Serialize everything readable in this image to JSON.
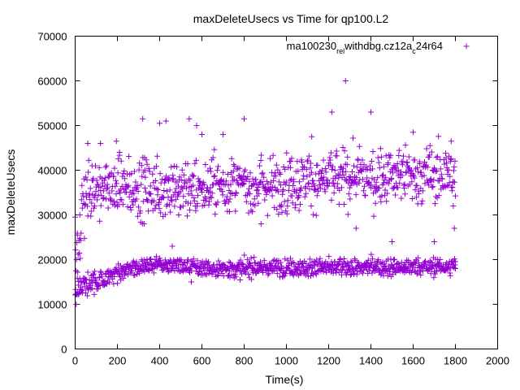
{
  "chart_data": {
    "type": "scatter",
    "title": "maxDeleteUsecs vs Time for qp100.L2",
    "xlabel": "Time(s)",
    "ylabel": "maxDeleteUsecs",
    "xlim": [
      0,
      2000
    ],
    "ylim": [
      0,
      70000
    ],
    "x_ticks": [
      0,
      200,
      400,
      600,
      800,
      1000,
      1200,
      1400,
      1600,
      1800,
      2000
    ],
    "y_ticks": [
      0,
      10000,
      20000,
      30000,
      40000,
      50000,
      60000,
      70000
    ],
    "grid": false,
    "legend_position": "top-right",
    "marker": "+",
    "series": [
      {
        "name": "ma100230_rel_withdbg.cz12a_c24r64",
        "legend_label": {
          "parts": [
            {
              "text": "ma100230",
              "sub": false
            },
            {
              "text": "rel",
              "sub": true
            },
            {
              "text": "withdbg.cz12a",
              "sub": false
            },
            {
              "text": "c",
              "sub": true
            },
            {
              "text": "24r64",
              "sub": false
            }
          ]
        },
        "color": "#9400d3",
        "x_range": [
          0,
          1800
        ],
        "samples_per_band": 900,
        "lower_band_trend": [
          [
            0,
            13500
          ],
          [
            100,
            15000
          ],
          [
            200,
            17000
          ],
          [
            300,
            18500
          ],
          [
            400,
            19000
          ],
          [
            500,
            18500
          ],
          [
            600,
            18000
          ],
          [
            1800,
            18500
          ]
        ],
        "lower_band_spread": 1400,
        "upper_band_trend": [
          [
            0,
            28000
          ],
          [
            40,
            33000
          ],
          [
            100,
            36000
          ],
          [
            400,
            36000
          ],
          [
            800,
            36500
          ],
          [
            1200,
            38000
          ],
          [
            1800,
            39000
          ]
        ],
        "upper_band_spread": 4500,
        "points": [
          {
            "x": 5,
            "y": 10000
          },
          {
            "x": 10,
            "y": 25500
          },
          {
            "x": 22,
            "y": 30000
          },
          {
            "x": 60,
            "y": 46000
          },
          {
            "x": 80,
            "y": 41000
          },
          {
            "x": 120,
            "y": 46000
          },
          {
            "x": 195,
            "y": 46500
          },
          {
            "x": 210,
            "y": 44000
          },
          {
            "x": 320,
            "y": 51500
          },
          {
            "x": 400,
            "y": 50500
          },
          {
            "x": 430,
            "y": 51000
          },
          {
            "x": 540,
            "y": 51500
          },
          {
            "x": 550,
            "y": 15000
          },
          {
            "x": 575,
            "y": 50000
          },
          {
            "x": 600,
            "y": 48000
          },
          {
            "x": 700,
            "y": 48000
          },
          {
            "x": 800,
            "y": 51500
          },
          {
            "x": 1020,
            "y": 42000
          },
          {
            "x": 1120,
            "y": 47500
          },
          {
            "x": 1215,
            "y": 53000
          },
          {
            "x": 1280,
            "y": 60000
          },
          {
            "x": 1300,
            "y": 38000
          },
          {
            "x": 1400,
            "y": 53000
          },
          {
            "x": 1530,
            "y": 40000
          },
          {
            "x": 1580,
            "y": 43000
          },
          {
            "x": 1600,
            "y": 48500
          },
          {
            "x": 1680,
            "y": 45500
          },
          {
            "x": 1700,
            "y": 24000
          },
          {
            "x": 1760,
            "y": 36500
          },
          {
            "x": 1780,
            "y": 46500
          },
          {
            "x": 1790,
            "y": 32000
          },
          {
            "x": 1795,
            "y": 27000
          },
          {
            "x": 1800,
            "y": 18000
          },
          {
            "x": 330,
            "y": 36000
          },
          {
            "x": 460,
            "y": 23000
          },
          {
            "x": 490,
            "y": 30000
          },
          {
            "x": 640,
            "y": 34000
          },
          {
            "x": 880,
            "y": 28000
          },
          {
            "x": 1060,
            "y": 31000
          },
          {
            "x": 1330,
            "y": 27000
          },
          {
            "x": 1500,
            "y": 24000
          }
        ]
      }
    ]
  }
}
